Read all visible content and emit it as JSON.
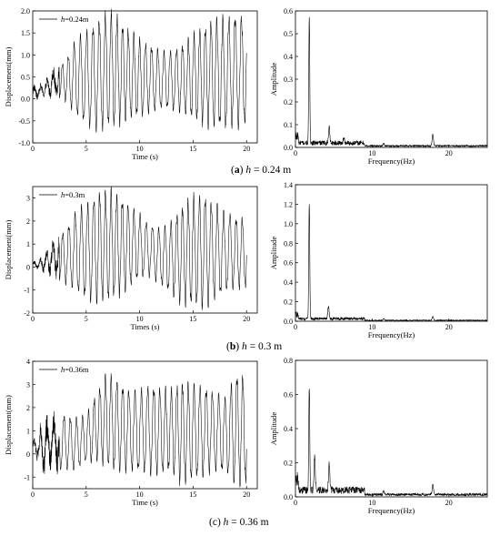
{
  "panels": [
    {
      "caption": {
        "letter": "a",
        "var": "h",
        "rest": " = 0.24 m"
      },
      "time_chart": {
        "type": "line",
        "ylabel": "Displacement(mm)",
        "xlabel": "Time (s)",
        "legend": {
          "var": "h",
          "rest": "=0.24m"
        },
        "xlim": [
          0,
          21
        ],
        "ylim": [
          -1.0,
          2.0
        ],
        "xticks": [
          "0",
          "5",
          "10",
          "15",
          "20"
        ],
        "yticks": [
          "-1.0",
          "-0.5",
          "0.0",
          "0.5",
          "1.0",
          "1.5",
          "2.0"
        ],
        "x_end": 20,
        "envelope_t": [
          0,
          1,
          2,
          3,
          4,
          5,
          6,
          7,
          8,
          9,
          10,
          11,
          12,
          13,
          14,
          15,
          16,
          17,
          18,
          19,
          20
        ],
        "envelope_max": [
          0.3,
          0.35,
          0.75,
          0.8,
          1.3,
          1.45,
          1.7,
          1.9,
          1.8,
          1.5,
          1.3,
          1.2,
          1.05,
          1.05,
          1.2,
          1.4,
          1.6,
          1.75,
          1.75,
          1.85,
          1.8
        ],
        "envelope_min": [
          -0.05,
          0.05,
          0.05,
          0.0,
          -0.3,
          -0.55,
          -0.65,
          -0.6,
          -0.5,
          -0.4,
          -0.35,
          -0.25,
          -0.2,
          -0.2,
          -0.25,
          -0.4,
          -0.5,
          -0.55,
          -0.6,
          -0.55,
          -0.5
        ],
        "dominant_freq_hz": 1.8
      },
      "freq_chart": {
        "type": "line",
        "ylabel": "Amplitude",
        "xlabel": "Frequency(Hz)",
        "xlim": [
          0,
          25
        ],
        "ylim": [
          0.0,
          0.6
        ],
        "xticks": [
          "0",
          "10",
          "20"
        ],
        "xtick_values": [
          0,
          10,
          20
        ],
        "yticks": [
          "0.0",
          "0.1",
          "0.2",
          "0.3",
          "0.4",
          "0.5",
          "0.6"
        ],
        "peaks": [
          {
            "f": 1.8,
            "a": 0.55
          },
          {
            "f": 4.4,
            "a": 0.07
          },
          {
            "f": 6.3,
            "a": 0.02
          },
          {
            "f": 11.5,
            "a": 0.01
          },
          {
            "f": 17.9,
            "a": 0.05
          }
        ],
        "noise": 0.03
      }
    },
    {
      "caption": {
        "letter": "b",
        "var": "h",
        "rest": " = 0.3 m"
      },
      "time_chart": {
        "type": "line",
        "ylabel": "Displacement(mm)",
        "xlabel": "Times (s)",
        "legend": {
          "var": "h",
          "rest": "=0.3m"
        },
        "xlim": [
          0,
          21
        ],
        "ylim": [
          -2,
          3.5
        ],
        "xticks": [
          "0",
          "5",
          "10",
          "15",
          "20"
        ],
        "yticks": [
          "-2",
          "-1",
          "0",
          "1",
          "2",
          "3"
        ],
        "x_end": 20,
        "envelope_t": [
          0,
          1,
          2,
          3,
          4,
          5,
          6,
          7,
          8,
          9,
          10,
          11,
          12,
          13,
          14,
          15,
          16,
          17,
          18,
          19,
          20
        ],
        "envelope_max": [
          0.2,
          0.5,
          1.2,
          1.5,
          2.3,
          2.6,
          3.1,
          3.2,
          3.0,
          2.6,
          2.2,
          1.8,
          1.6,
          1.9,
          2.6,
          2.9,
          3.0,
          2.7,
          2.3,
          2.1,
          2.0
        ],
        "envelope_min": [
          0.0,
          -0.2,
          -0.4,
          -0.6,
          -0.9,
          -1.3,
          -1.4,
          -1.4,
          -1.1,
          -0.8,
          -0.4,
          -0.3,
          -0.7,
          -1.1,
          -1.5,
          -1.6,
          -1.6,
          -1.3,
          -1.0,
          -0.8,
          -0.8
        ],
        "dominant_freq_hz": 1.8
      },
      "freq_chart": {
        "type": "line",
        "ylabel": "Amplitude",
        "xlabel": "Frequency(Hz)",
        "xlim": [
          0,
          25
        ],
        "ylim": [
          0.0,
          1.4
        ],
        "xticks": [
          "0",
          "10",
          "20"
        ],
        "xtick_values": [
          0,
          10,
          20
        ],
        "yticks": [
          "0.0",
          "0.2",
          "0.4",
          "0.6",
          "0.8",
          "1.0",
          "1.2",
          "1.4"
        ],
        "peaks": [
          {
            "f": 1.8,
            "a": 1.18
          },
          {
            "f": 4.3,
            "a": 0.12
          },
          {
            "f": 11.5,
            "a": 0.02
          },
          {
            "f": 17.9,
            "a": 0.04
          }
        ],
        "noise": 0.04
      }
    },
    {
      "caption": {
        "letter": "c",
        "var": "h",
        "rest": " = 0.36 m"
      },
      "time_chart": {
        "type": "line",
        "ylabel": "Displacement(mm)",
        "xlabel": "Time (s)",
        "legend": {
          "var": "h",
          "rest": "=0.36m"
        },
        "xlim": [
          0,
          21
        ],
        "ylim": [
          -1.5,
          4
        ],
        "xticks": [
          "0",
          "5",
          "10",
          "15",
          "20"
        ],
        "yticks": [
          "-1",
          "0",
          "1",
          "2",
          "3",
          "4"
        ],
        "x_end": 20,
        "envelope_t": [
          0,
          1,
          2,
          3,
          4,
          5,
          6,
          7,
          8,
          9,
          10,
          11,
          12,
          13,
          14,
          15,
          16,
          17,
          18,
          19,
          20
        ],
        "envelope_max": [
          0.5,
          1.5,
          1.7,
          1.6,
          1.5,
          1.6,
          2.6,
          3.4,
          3.0,
          2.7,
          2.6,
          2.9,
          2.7,
          2.7,
          3.0,
          2.9,
          2.8,
          2.6,
          2.3,
          3.4,
          3.2
        ],
        "envelope_min": [
          0.1,
          -0.9,
          -0.7,
          -0.6,
          -0.6,
          -0.3,
          -0.2,
          -0.5,
          -0.6,
          -0.6,
          -0.7,
          -0.7,
          -0.8,
          -0.6,
          -1.2,
          -1.0,
          -0.8,
          -0.6,
          -0.7,
          -1.2,
          -1.1
        ],
        "dominant_freq_hz": 1.8
      },
      "freq_chart": {
        "type": "line",
        "ylabel": "Amplitude",
        "xlabel": "Frequency(Hz)",
        "xlim": [
          0,
          25
        ],
        "ylim": [
          0.0,
          0.8
        ],
        "xticks": [
          "0",
          "10",
          "20"
        ],
        "xtick_values": [
          0,
          10,
          20
        ],
        "yticks": [
          "0.0",
          "0.2",
          "0.4",
          "0.6",
          "0.8"
        ],
        "peaks": [
          {
            "f": 1.8,
            "a": 0.61
          },
          {
            "f": 2.5,
            "a": 0.2
          },
          {
            "f": 4.4,
            "a": 0.16
          },
          {
            "f": 11.5,
            "a": 0.02
          },
          {
            "f": 17.9,
            "a": 0.06
          }
        ],
        "noise": 0.06
      }
    }
  ]
}
